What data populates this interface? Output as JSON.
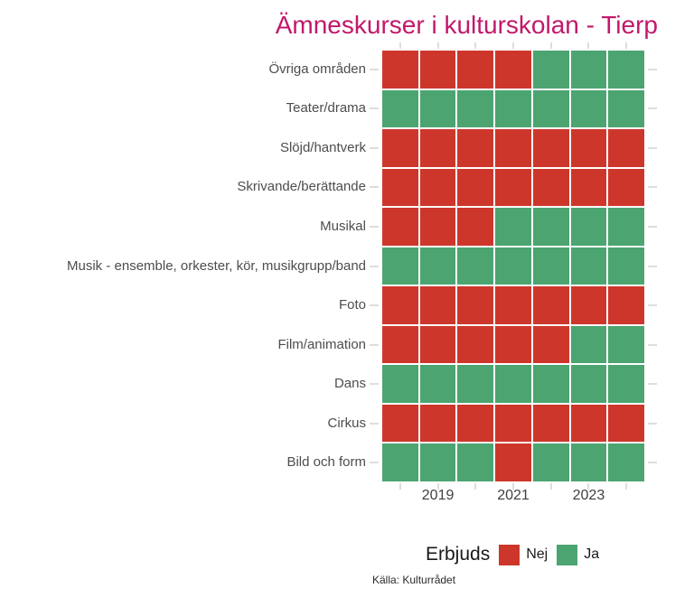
{
  "chart_data": {
    "type": "heatmap",
    "title": "Ämneskurser i kulturskolan - Tierp",
    "caption": "Källa: Kulturrådet",
    "x": [
      "2018",
      "2019",
      "2020",
      "2021",
      "2022",
      "2023",
      "2024"
    ],
    "x_tick_labels": [
      "2019",
      "2021",
      "2023"
    ],
    "categories": [
      "Övriga områden",
      "Teater/drama",
      "Slöjd/hantverk",
      "Skrivande/berättande",
      "Musikal",
      "Musik - ensemble, orkester, kör, musikgrupp/band",
      "Foto",
      "Film/animation",
      "Dans",
      "Cirkus",
      "Bild och form"
    ],
    "rows": [
      {
        "category": "Övriga områden",
        "values": [
          "Nej",
          "Nej",
          "Nej",
          "Nej",
          "Ja",
          "Ja",
          "Ja"
        ]
      },
      {
        "category": "Teater/drama",
        "values": [
          "Ja",
          "Ja",
          "Ja",
          "Ja",
          "Ja",
          "Ja",
          "Ja"
        ]
      },
      {
        "category": "Slöjd/hantverk",
        "values": [
          "Nej",
          "Nej",
          "Nej",
          "Nej",
          "Nej",
          "Nej",
          "Nej"
        ]
      },
      {
        "category": "Skrivande/berättande",
        "values": [
          "Nej",
          "Nej",
          "Nej",
          "Nej",
          "Nej",
          "Nej",
          "Nej"
        ]
      },
      {
        "category": "Musikal",
        "values": [
          "Nej",
          "Nej",
          "Nej",
          "Ja",
          "Ja",
          "Ja",
          "Ja"
        ]
      },
      {
        "category": "Musik - ensemble, orkester, kör, musikgrupp/band",
        "values": [
          "Ja",
          "Ja",
          "Ja",
          "Ja",
          "Ja",
          "Ja",
          "Ja"
        ]
      },
      {
        "category": "Foto",
        "values": [
          "Nej",
          "Nej",
          "Nej",
          "Nej",
          "Nej",
          "Nej",
          "Nej"
        ]
      },
      {
        "category": "Film/animation",
        "values": [
          "Nej",
          "Nej",
          "Nej",
          "Nej",
          "Nej",
          "Ja",
          "Ja"
        ]
      },
      {
        "category": "Dans",
        "values": [
          "Ja",
          "Ja",
          "Ja",
          "Ja",
          "Ja",
          "Ja",
          "Ja"
        ]
      },
      {
        "category": "Cirkus",
        "values": [
          "Nej",
          "Nej",
          "Nej",
          "Nej",
          "Nej",
          "Nej",
          "Nej"
        ]
      },
      {
        "category": "Bild och form",
        "values": [
          "Ja",
          "Ja",
          "Ja",
          "Nej",
          "Ja",
          "Ja",
          "Ja"
        ]
      }
    ],
    "legend": {
      "title": "Erbjuds",
      "items": [
        {
          "label": "Nej",
          "color": "#cd372b"
        },
        {
          "label": "Ja",
          "color": "#4ca471"
        }
      ]
    },
    "value_colors": {
      "Nej": "#cd372b",
      "Ja": "#4ca471"
    },
    "layout_hints": {
      "grid": "off",
      "legend_position": "bottom",
      "title_color": "#c2186b"
    }
  }
}
